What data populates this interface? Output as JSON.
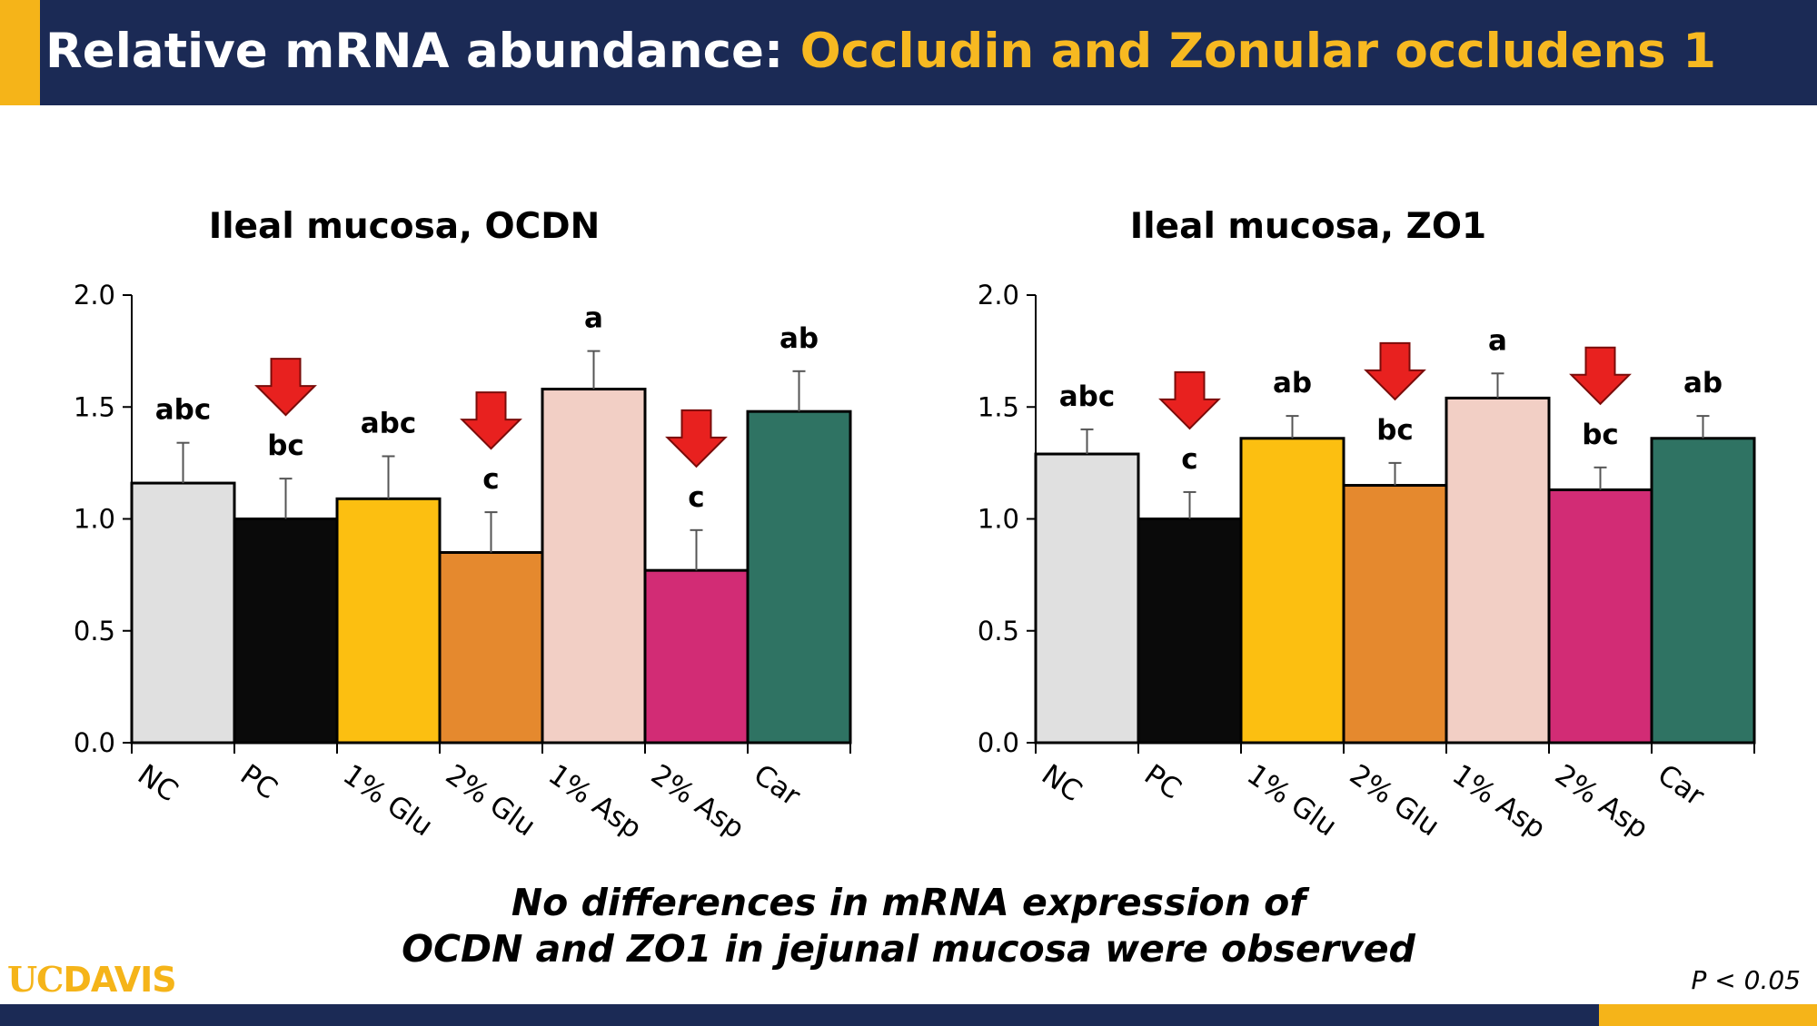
{
  "header": {
    "title_part1": "Relative mRNA abundance:",
    "title_part2": "Occludin and Zonular occludens 1"
  },
  "chart_data": [
    {
      "type": "bar",
      "title": "Ileal mucosa, OCDN",
      "categories": [
        "NC",
        "PC",
        "1% Glu",
        "2% Glu",
        "1% Asp",
        "2% Asp",
        "Car"
      ],
      "values": [
        1.16,
        1.0,
        1.09,
        0.85,
        1.58,
        0.77,
        1.48
      ],
      "errors": [
        0.18,
        0.18,
        0.19,
        0.18,
        0.17,
        0.18,
        0.18
      ],
      "significance": [
        "abc",
        "bc",
        "abc",
        "c",
        "a",
        "c",
        "ab"
      ],
      "arrows": [
        false,
        true,
        false,
        true,
        false,
        true,
        false
      ],
      "colors": [
        "#e0e0e0",
        "#0a0a0a",
        "#fcbf11",
        "#e5892e",
        "#f2cfc5",
        "#d22c75",
        "#2f7363"
      ],
      "ylim": [
        0,
        2
      ],
      "yticks": [
        "0.0",
        "0.5",
        "1.0",
        "1.5",
        "2.0"
      ],
      "xlabel": "",
      "ylabel": "",
      "grid": false
    },
    {
      "type": "bar",
      "title": "Ileal mucosa, ZO1",
      "categories": [
        "NC",
        "PC",
        "1% Glu",
        "2% Glu",
        "1% Asp",
        "2% Asp",
        "Car"
      ],
      "values": [
        1.29,
        1.0,
        1.36,
        1.15,
        1.54,
        1.13,
        1.36
      ],
      "errors": [
        0.11,
        0.12,
        0.1,
        0.1,
        0.11,
        0.1,
        0.1
      ],
      "significance": [
        "abc",
        "c",
        "ab",
        "bc",
        "a",
        "bc",
        "ab"
      ],
      "arrows": [
        false,
        true,
        false,
        true,
        false,
        true,
        false
      ],
      "colors": [
        "#e0e0e0",
        "#0a0a0a",
        "#fcbf11",
        "#e5892e",
        "#f2cfc5",
        "#d22c75",
        "#2f7363"
      ],
      "ylim": [
        0,
        2
      ],
      "yticks": [
        "0.0",
        "0.5",
        "1.0",
        "1.5",
        "2.0"
      ],
      "xlabel": "",
      "ylabel": "",
      "grid": false
    }
  ],
  "colors": {
    "navy": "#1b2a55",
    "gold": "#f5b419",
    "arrow_red": "#e8211f"
  },
  "footer": {
    "note_line1": "No differences in mRNA expression of",
    "note_line2": "OCDN and ZO1 in jejunal mucosa were observed",
    "logo_uc": "UC",
    "logo_davis": "DAVIS",
    "p_value": "P < 0.05"
  }
}
